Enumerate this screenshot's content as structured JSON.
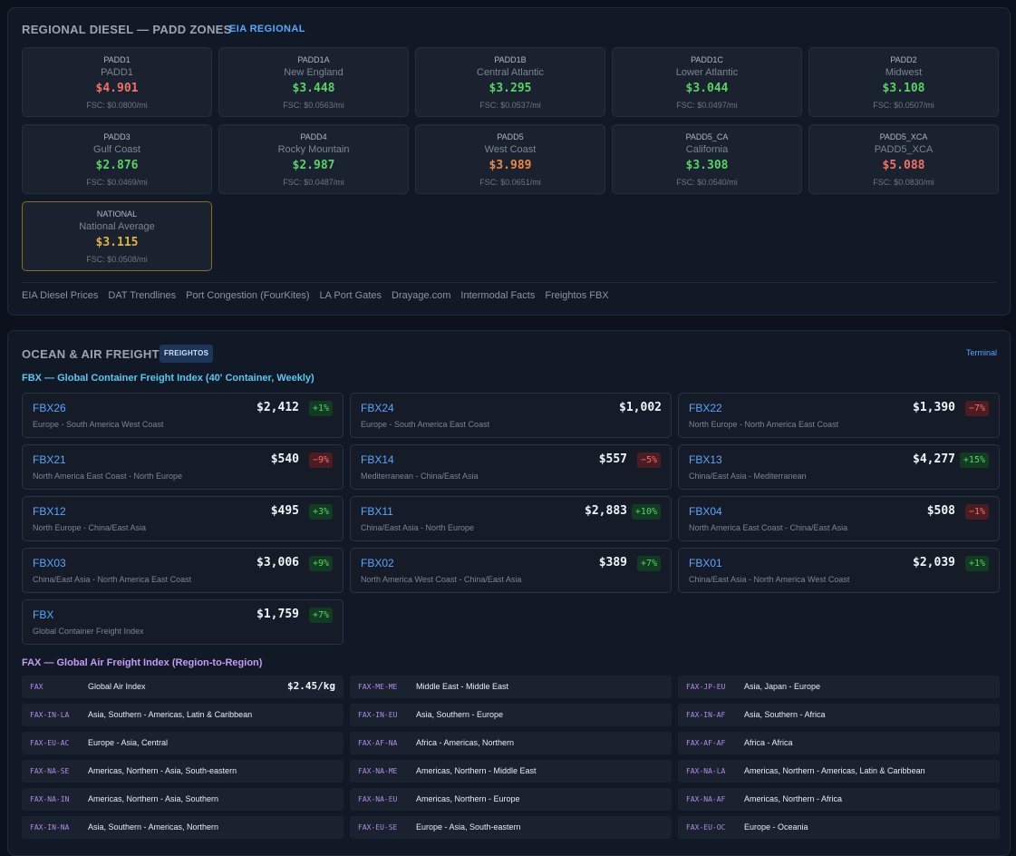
{
  "regional": {
    "title": "REGIONAL DIESEL — PADD ZONES",
    "tag": "EIA REGIONAL",
    "colors": {
      "red": "#f47067",
      "green": "#56d364",
      "orange": "#f0883e",
      "yellow": "#e3b341"
    },
    "cards": [
      {
        "code": "PADD1",
        "name": "PADD1",
        "price": "$4.901",
        "fsc": "FSC: $0.0800/mi",
        "color": "red"
      },
      {
        "code": "PADD1A",
        "name": "New England",
        "price": "$3.448",
        "fsc": "FSC: $0.0563/mi",
        "color": "green"
      },
      {
        "code": "PADD1B",
        "name": "Central Atlantic",
        "price": "$3.295",
        "fsc": "FSC: $0.0537/mi",
        "color": "green"
      },
      {
        "code": "PADD1C",
        "name": "Lower Atlantic",
        "price": "$3.044",
        "fsc": "FSC: $0.0497/mi",
        "color": "green"
      },
      {
        "code": "PADD2",
        "name": "Midwest",
        "price": "$3.108",
        "fsc": "FSC: $0.0507/mi",
        "color": "green"
      },
      {
        "code": "PADD3",
        "name": "Gulf Coast",
        "price": "$2.876",
        "fsc": "FSC: $0.0469/mi",
        "color": "green"
      },
      {
        "code": "PADD4",
        "name": "Rocky Mountain",
        "price": "$2.987",
        "fsc": "FSC: $0.0487/mi",
        "color": "green"
      },
      {
        "code": "PADD5",
        "name": "West Coast",
        "price": "$3.989",
        "fsc": "FSC: $0.0651/mi",
        "color": "orange"
      },
      {
        "code": "PADD5_CA",
        "name": "California",
        "price": "$3.308",
        "fsc": "FSC: $0.0540/mi",
        "color": "green"
      },
      {
        "code": "PADD5_XCA",
        "name": "PADD5_XCA",
        "price": "$5.088",
        "fsc": "FSC: $0.0830/mi",
        "color": "red"
      },
      {
        "code": "NATIONAL",
        "name": "National Average",
        "price": "$3.115",
        "fsc": "FSC: $0.0508/mi",
        "color": "yellow"
      }
    ],
    "links": [
      "EIA Diesel Prices",
      "DAT Trendlines",
      "Port Congestion (FourKites)",
      "LA Port Gates",
      "Drayage.com",
      "Intermodal Facts",
      "Freightos FBX"
    ]
  },
  "ocean": {
    "title": "OCEAN & AIR FREIGHT",
    "tag": "FREIGHTOS",
    "terminal": "Terminal",
    "fbx_title": "FBX — Global Container Freight Index (40' Container, Weekly)",
    "fbx": [
      {
        "code": "FBX26",
        "price": "$2,412",
        "change": "+1%",
        "dir": "up",
        "desc": "Europe - South America West Coast"
      },
      {
        "code": "FBX24",
        "price": "$1,002",
        "change": "",
        "dir": "",
        "desc": "Europe - South America East Coast"
      },
      {
        "code": "FBX22",
        "price": "$1,390",
        "change": "−7%",
        "dir": "down",
        "desc": "North Europe - North America East Coast"
      },
      {
        "code": "FBX21",
        "price": "$540",
        "change": "−9%",
        "dir": "down",
        "desc": "North America East Coast - North Europe"
      },
      {
        "code": "FBX14",
        "price": "$557",
        "change": "−5%",
        "dir": "down",
        "desc": "Mediterranean - China/East Asia"
      },
      {
        "code": "FBX13",
        "price": "$4,277",
        "change": "+15%",
        "dir": "up",
        "desc": "China/East Asia - Mediterranean"
      },
      {
        "code": "FBX12",
        "price": "$495",
        "change": "+3%",
        "dir": "up",
        "desc": "North Europe - China/East Asia"
      },
      {
        "code": "FBX11",
        "price": "$2,883",
        "change": "+10%",
        "dir": "up",
        "desc": "China/East Asia - North Europe"
      },
      {
        "code": "FBX04",
        "price": "$508",
        "change": "−1%",
        "dir": "down",
        "desc": "North America East Coast - China/East Asia"
      },
      {
        "code": "FBX03",
        "price": "$3,006",
        "change": "+9%",
        "dir": "up",
        "desc": "China/East Asia - North America East Coast"
      },
      {
        "code": "FBX02",
        "price": "$389",
        "change": "+7%",
        "dir": "up",
        "desc": "North America West Coast - China/East Asia"
      },
      {
        "code": "FBX01",
        "price": "$2,039",
        "change": "+1%",
        "dir": "up",
        "desc": "China/East Asia - North America West Coast"
      },
      {
        "code": "FBX",
        "price": "$1,759",
        "change": "+7%",
        "dir": "up",
        "desc": "Global Container Freight Index"
      }
    ],
    "fax_title": "FAX — Global Air Freight Index (Region-to-Region)",
    "fax": [
      {
        "code": "FAX",
        "name": "Global Air Index",
        "price": "$2.45/kg"
      },
      {
        "code": "FAX-ME-ME",
        "name": "Middle East - Middle East",
        "price": ""
      },
      {
        "code": "FAX-JP-EU",
        "name": "Asia, Japan - Europe",
        "price": ""
      },
      {
        "code": "FAX-IN-LA",
        "name": "Asia, Southern - Americas, Latin & Caribbean",
        "price": ""
      },
      {
        "code": "FAX-IN-EU",
        "name": "Asia, Southern - Europe",
        "price": ""
      },
      {
        "code": "FAX-IN-AF",
        "name": "Asia, Southern - Africa",
        "price": ""
      },
      {
        "code": "FAX-EU-AC",
        "name": "Europe - Asia, Central",
        "price": ""
      },
      {
        "code": "FAX-AF-NA",
        "name": "Africa - Americas, Northern",
        "price": ""
      },
      {
        "code": "FAX-AF-AF",
        "name": "Africa - Africa",
        "price": ""
      },
      {
        "code": "FAX-NA-SE",
        "name": "Americas, Northern - Asia, South-eastern",
        "price": ""
      },
      {
        "code": "FAX-NA-ME",
        "name": "Americas, Northern - Middle East",
        "price": ""
      },
      {
        "code": "FAX-NA-LA",
        "name": "Americas, Northern - Americas, Latin & Caribbean",
        "price": ""
      },
      {
        "code": "FAX-NA-IN",
        "name": "Americas, Northern - Asia, Southern",
        "price": ""
      },
      {
        "code": "FAX-NA-EU",
        "name": "Americas, Northern - Europe",
        "price": ""
      },
      {
        "code": "FAX-NA-AF",
        "name": "Americas, Northern - Africa",
        "price": ""
      },
      {
        "code": "FAX-IN-NA",
        "name": "Asia, Southern - Americas, Northern",
        "price": ""
      },
      {
        "code": "FAX-EU-SE",
        "name": "Europe - Asia, South-eastern",
        "price": ""
      },
      {
        "code": "FAX-EU-OC",
        "name": "Europe - Oceania",
        "price": ""
      }
    ]
  }
}
